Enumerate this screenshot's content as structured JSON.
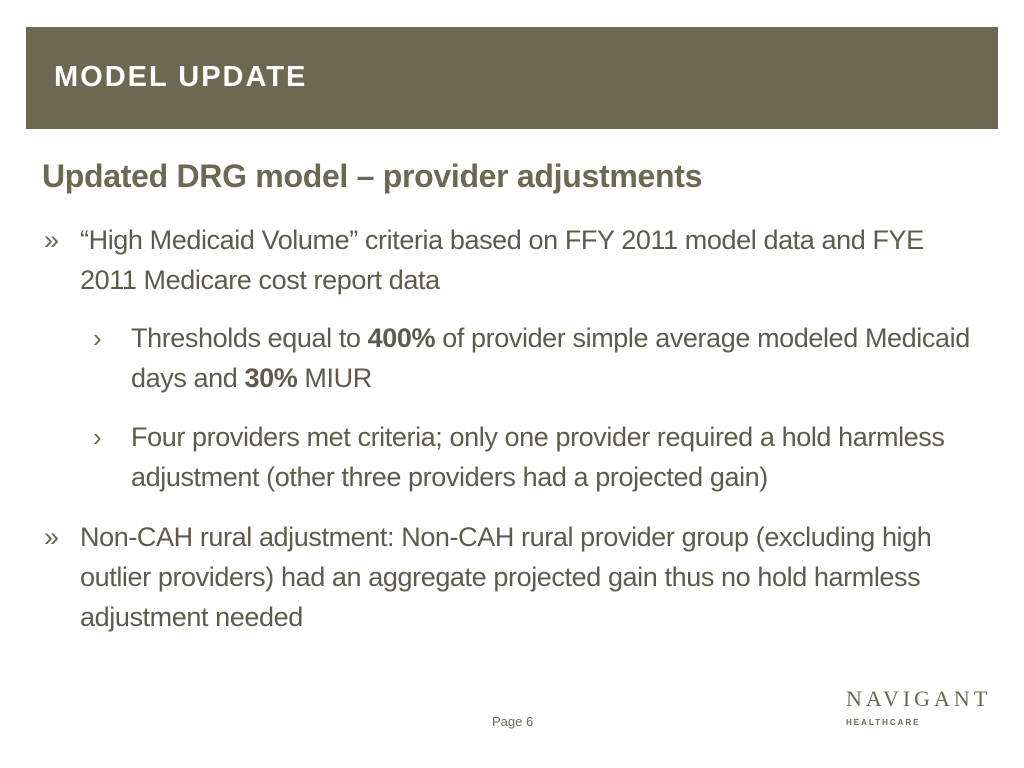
{
  "header": {
    "title": "MODEL UPDATE"
  },
  "content": {
    "subtitle": "Updated DRG model – provider adjustments",
    "bullet_marker_l1": "»",
    "bullet_marker_l2": "›",
    "bullet1": {
      "text": "“High Medicaid Volume” criteria based on FFY 2011 model data and FYE 2011 Medicare cost report data",
      "sub1": {
        "part1": "Thresholds equal to ",
        "bold1": "400%",
        "part2": " of provider simple average modeled Medicaid days and ",
        "bold2": "30%",
        "part3": " MIUR"
      },
      "sub2": {
        "text": "Four providers met criteria; only one provider required a hold harmless adjustment (other three providers had a projected gain)"
      }
    },
    "bullet2": {
      "text": "Non-CAH rural adjustment: Non-CAH rural provider group (excluding high outlier providers) had an aggregate projected gain thus no hold harmless adjustment needed"
    }
  },
  "footer": {
    "page_label": "Page 6",
    "logo_word": "NAVIGANT",
    "logo_sub": "HEALTHCARE"
  },
  "colors": {
    "header_bg": "#6d6852",
    "text": "#5e5b4c"
  }
}
